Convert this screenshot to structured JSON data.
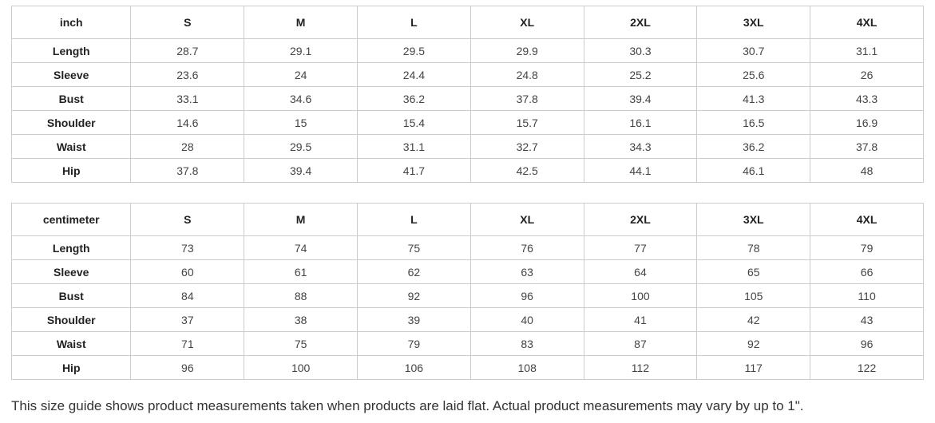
{
  "chart_data": [
    {
      "type": "table",
      "unit": "inch",
      "columns": [
        "inch",
        "S",
        "M",
        "L",
        "XL",
        "2XL",
        "3XL",
        "4XL"
      ],
      "rows": [
        {
          "label": "Length",
          "values": [
            "28.7",
            "29.1",
            "29.5",
            "29.9",
            "30.3",
            "30.7",
            "31.1"
          ]
        },
        {
          "label": "Sleeve",
          "values": [
            "23.6",
            "24",
            "24.4",
            "24.8",
            "25.2",
            "25.6",
            "26"
          ]
        },
        {
          "label": "Bust",
          "values": [
            "33.1",
            "34.6",
            "36.2",
            "37.8",
            "39.4",
            "41.3",
            "43.3"
          ]
        },
        {
          "label": "Shoulder",
          "values": [
            "14.6",
            "15",
            "15.4",
            "15.7",
            "16.1",
            "16.5",
            "16.9"
          ]
        },
        {
          "label": "Waist",
          "values": [
            "28",
            "29.5",
            "31.1",
            "32.7",
            "34.3",
            "36.2",
            "37.8"
          ]
        },
        {
          "label": "Hip",
          "values": [
            "37.8",
            "39.4",
            "41.7",
            "42.5",
            "44.1",
            "46.1",
            "48"
          ]
        }
      ]
    },
    {
      "type": "table",
      "unit": "centimeter",
      "columns": [
        "centimeter",
        "S",
        "M",
        "L",
        "XL",
        "2XL",
        "3XL",
        "4XL"
      ],
      "rows": [
        {
          "label": "Length",
          "values": [
            "73",
            "74",
            "75",
            "76",
            "77",
            "78",
            "79"
          ]
        },
        {
          "label": "Sleeve",
          "values": [
            "60",
            "61",
            "62",
            "63",
            "64",
            "65",
            "66"
          ]
        },
        {
          "label": "Bust",
          "values": [
            "84",
            "88",
            "92",
            "96",
            "100",
            "105",
            "110"
          ]
        },
        {
          "label": "Shoulder",
          "values": [
            "37",
            "38",
            "39",
            "40",
            "41",
            "42",
            "43"
          ]
        },
        {
          "label": "Waist",
          "values": [
            "71",
            "75",
            "79",
            "83",
            "87",
            "92",
            "96"
          ]
        },
        {
          "label": "Hip",
          "values": [
            "96",
            "100",
            "106",
            "108",
            "112",
            "117",
            "122"
          ]
        }
      ]
    }
  ],
  "caption": "This size guide shows product measurements taken when products are laid flat. Actual product measurements may vary by up to 1\".",
  "colors": {
    "border": "#cccccc",
    "header_text": "#222222",
    "value_text": "#444444",
    "caption_text": "#333333",
    "background": "#ffffff"
  }
}
